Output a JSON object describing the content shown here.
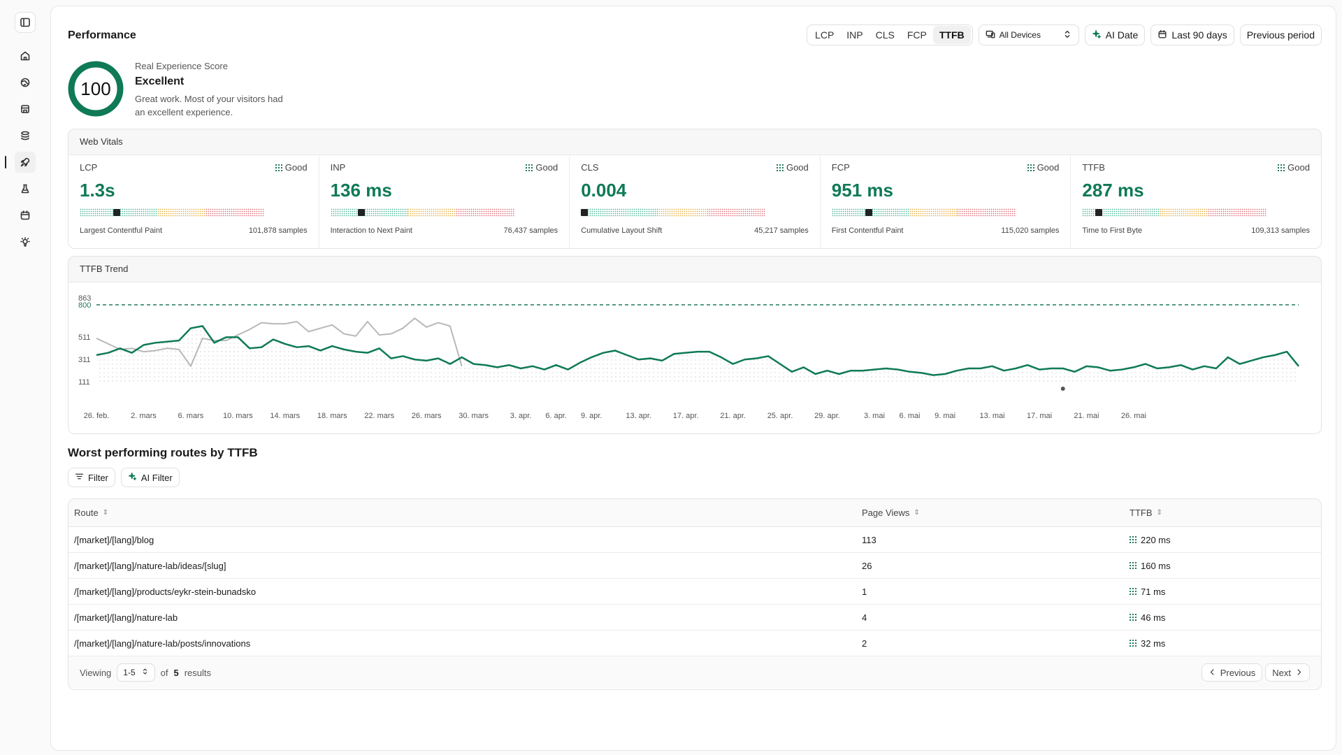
{
  "header": {
    "title": "Performance",
    "metric_tabs": [
      {
        "label": "LCP",
        "active": false
      },
      {
        "label": "INP",
        "active": false
      },
      {
        "label": "CLS",
        "active": false
      },
      {
        "label": "FCP",
        "active": false
      },
      {
        "label": "TTFB",
        "active": true
      }
    ],
    "device_select": "All Devices",
    "ai_date_label": "AI Date",
    "date_range_label": "Last 90 days",
    "compare_label": "Previous period"
  },
  "score": {
    "value": "100",
    "label": "Real Experience Score",
    "rating": "Excellent",
    "description": "Great work. Most of your visitors had an excellent experience."
  },
  "vitals": {
    "title": "Web Vitals",
    "good_label": "Good",
    "items": [
      {
        "abbr": "LCP",
        "value": "1.3s",
        "name": "Largest Contentful Paint",
        "samples": "101,878 samples",
        "marker_pct": 0.2
      },
      {
        "abbr": "INP",
        "value": "136 ms",
        "name": "Interaction to Next Paint",
        "samples": "76,437 samples",
        "marker_pct": 0.17
      },
      {
        "abbr": "CLS",
        "value": "0.004",
        "name": "Cumulative Layout Shift",
        "samples": "45,217 samples",
        "marker_pct": 0.0
      },
      {
        "abbr": "FCP",
        "value": "951 ms",
        "name": "First Contentful Paint",
        "samples": "115,020 samples",
        "marker_pct": 0.2
      },
      {
        "abbr": "TTFB",
        "value": "287 ms",
        "name": "Time to First Byte",
        "samples": "109,313 samples",
        "marker_pct": 0.09
      }
    ]
  },
  "trend": {
    "title": "TTFB Trend",
    "threshold_label": "800",
    "colors": {
      "current": "#0f7a55",
      "previous": "#b8b8b8",
      "threshold": "#1f7a5a"
    }
  },
  "chart_data": {
    "type": "line",
    "ylim": [
      111,
      863
    ],
    "yticks": [
      "863",
      "800",
      "511",
      "311",
      "111"
    ],
    "ytick_values": [
      863,
      800,
      511,
      311,
      111
    ],
    "threshold": 800,
    "xtick_labels": [
      "26. feb.",
      "2. mars",
      "6. mars",
      "10. mars",
      "14. mars",
      "18. mars",
      "22. mars",
      "26. mars",
      "30. mars",
      "3. apr.",
      "6. apr.",
      "9. apr.",
      "13. apr.",
      "17. apr.",
      "21. apr.",
      "25. apr.",
      "29. apr.",
      "3. mai",
      "6. mai",
      "9. mai",
      "13. mai",
      "17. mai",
      "21. mai",
      "26. mai"
    ],
    "xtick_index": [
      0,
      4,
      8,
      12,
      16,
      20,
      24,
      28,
      32,
      36,
      39,
      42,
      46,
      50,
      54,
      58,
      62,
      66,
      69,
      72,
      76,
      80,
      84,
      88
    ],
    "series": [
      {
        "values": [
          350,
          370,
          410,
          370,
          440,
          460,
          470,
          480,
          590,
          610,
          460,
          510,
          510,
          410,
          420,
          490,
          450,
          420,
          430,
          390,
          430,
          400,
          380,
          370,
          410,
          320,
          340,
          310,
          300,
          320,
          270,
          330,
          270,
          260,
          240,
          260,
          230,
          250,
          220,
          260,
          220,
          280,
          330,
          370,
          390,
          350,
          310,
          320,
          300,
          360,
          370,
          380,
          380,
          330,
          270,
          310,
          320,
          340,
          270,
          200,
          240,
          180,
          210,
          180,
          210,
          210,
          220,
          230,
          220,
          200,
          190,
          170,
          180,
          210,
          230,
          230,
          250,
          210,
          230,
          260,
          220,
          230,
          230,
          200,
          250,
          240,
          210,
          220,
          240,
          270,
          230,
          240,
          260,
          220,
          250,
          230,
          330,
          270,
          300,
          330,
          350,
          380,
          250
        ]
      },
      {
        "values": [
          500,
          450,
          400,
          410,
          380,
          390,
          410,
          400,
          250,
          500,
          480,
          480,
          530,
          580,
          640,
          630,
          630,
          650,
          560,
          590,
          620,
          540,
          520,
          650,
          530,
          540,
          590,
          680,
          600,
          640,
          610,
          250
        ]
      }
    ],
    "point_marker": {
      "series": 0,
      "index": 82
    }
  },
  "routes": {
    "title": "Worst performing routes by TTFB",
    "filter_label": "Filter",
    "ai_filter_label": "AI Filter",
    "columns": {
      "route": "Route",
      "views": "Page Views",
      "ttfb": "TTFB"
    },
    "rows": [
      {
        "route": "/[market]/[lang]/blog",
        "views": "113",
        "ttfb": "220 ms"
      },
      {
        "route": "/[market]/[lang]/nature-lab/ideas/[slug]",
        "views": "26",
        "ttfb": "160 ms"
      },
      {
        "route": "/[market]/[lang]/products/eykr-stein-bunadsko",
        "views": "1",
        "ttfb": "71 ms"
      },
      {
        "route": "/[market]/[lang]/nature-lab",
        "views": "4",
        "ttfb": "46 ms"
      },
      {
        "route": "/[market]/[lang]/nature-lab/posts/innovations",
        "views": "2",
        "ttfb": "32 ms"
      }
    ],
    "footer": {
      "viewing_label": "Viewing",
      "range": "1-5",
      "of_label": "of",
      "total": "5",
      "results_label": "results",
      "prev_label": "Previous",
      "next_label": "Next"
    }
  }
}
